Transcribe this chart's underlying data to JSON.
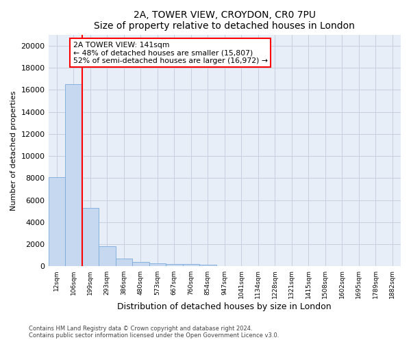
{
  "title_line1": "2A, TOWER VIEW, CROYDON, CR0 7PU",
  "title_line2": "Size of property relative to detached houses in London",
  "xlabel": "Distribution of detached houses by size in London",
  "ylabel": "Number of detached properties",
  "categories": [
    "12sqm",
    "106sqm",
    "199sqm",
    "293sqm",
    "386sqm",
    "480sqm",
    "573sqm",
    "667sqm",
    "760sqm",
    "854sqm",
    "947sqm",
    "1041sqm",
    "1134sqm",
    "1228sqm",
    "1321sqm",
    "1415sqm",
    "1508sqm",
    "1602sqm",
    "1695sqm",
    "1789sqm",
    "1882sqm"
  ],
  "values": [
    8100,
    16500,
    5300,
    1850,
    700,
    380,
    280,
    230,
    200,
    180,
    0,
    0,
    0,
    0,
    0,
    0,
    0,
    0,
    0,
    0,
    0
  ],
  "bar_color": "#c5d8f0",
  "bar_edge_color": "#7aabdb",
  "red_line_x": 1.5,
  "annotation_text": "2A TOWER VIEW: 141sqm\n← 48% of detached houses are smaller (15,807)\n52% of semi-detached houses are larger (16,972) →",
  "annotation_box_color": "white",
  "annotation_box_edge": "red",
  "ylim": [
    0,
    21000
  ],
  "yticks": [
    0,
    2000,
    4000,
    6000,
    8000,
    10000,
    12000,
    14000,
    16000,
    18000,
    20000
  ],
  "grid_color": "#c8d0e0",
  "background_color": "#e8eef8",
  "footer_line1": "Contains HM Land Registry data © Crown copyright and database right 2024.",
  "footer_line2": "Contains public sector information licensed under the Open Government Licence v3.0.",
  "fig_width": 6.0,
  "fig_height": 5.0,
  "dpi": 100
}
